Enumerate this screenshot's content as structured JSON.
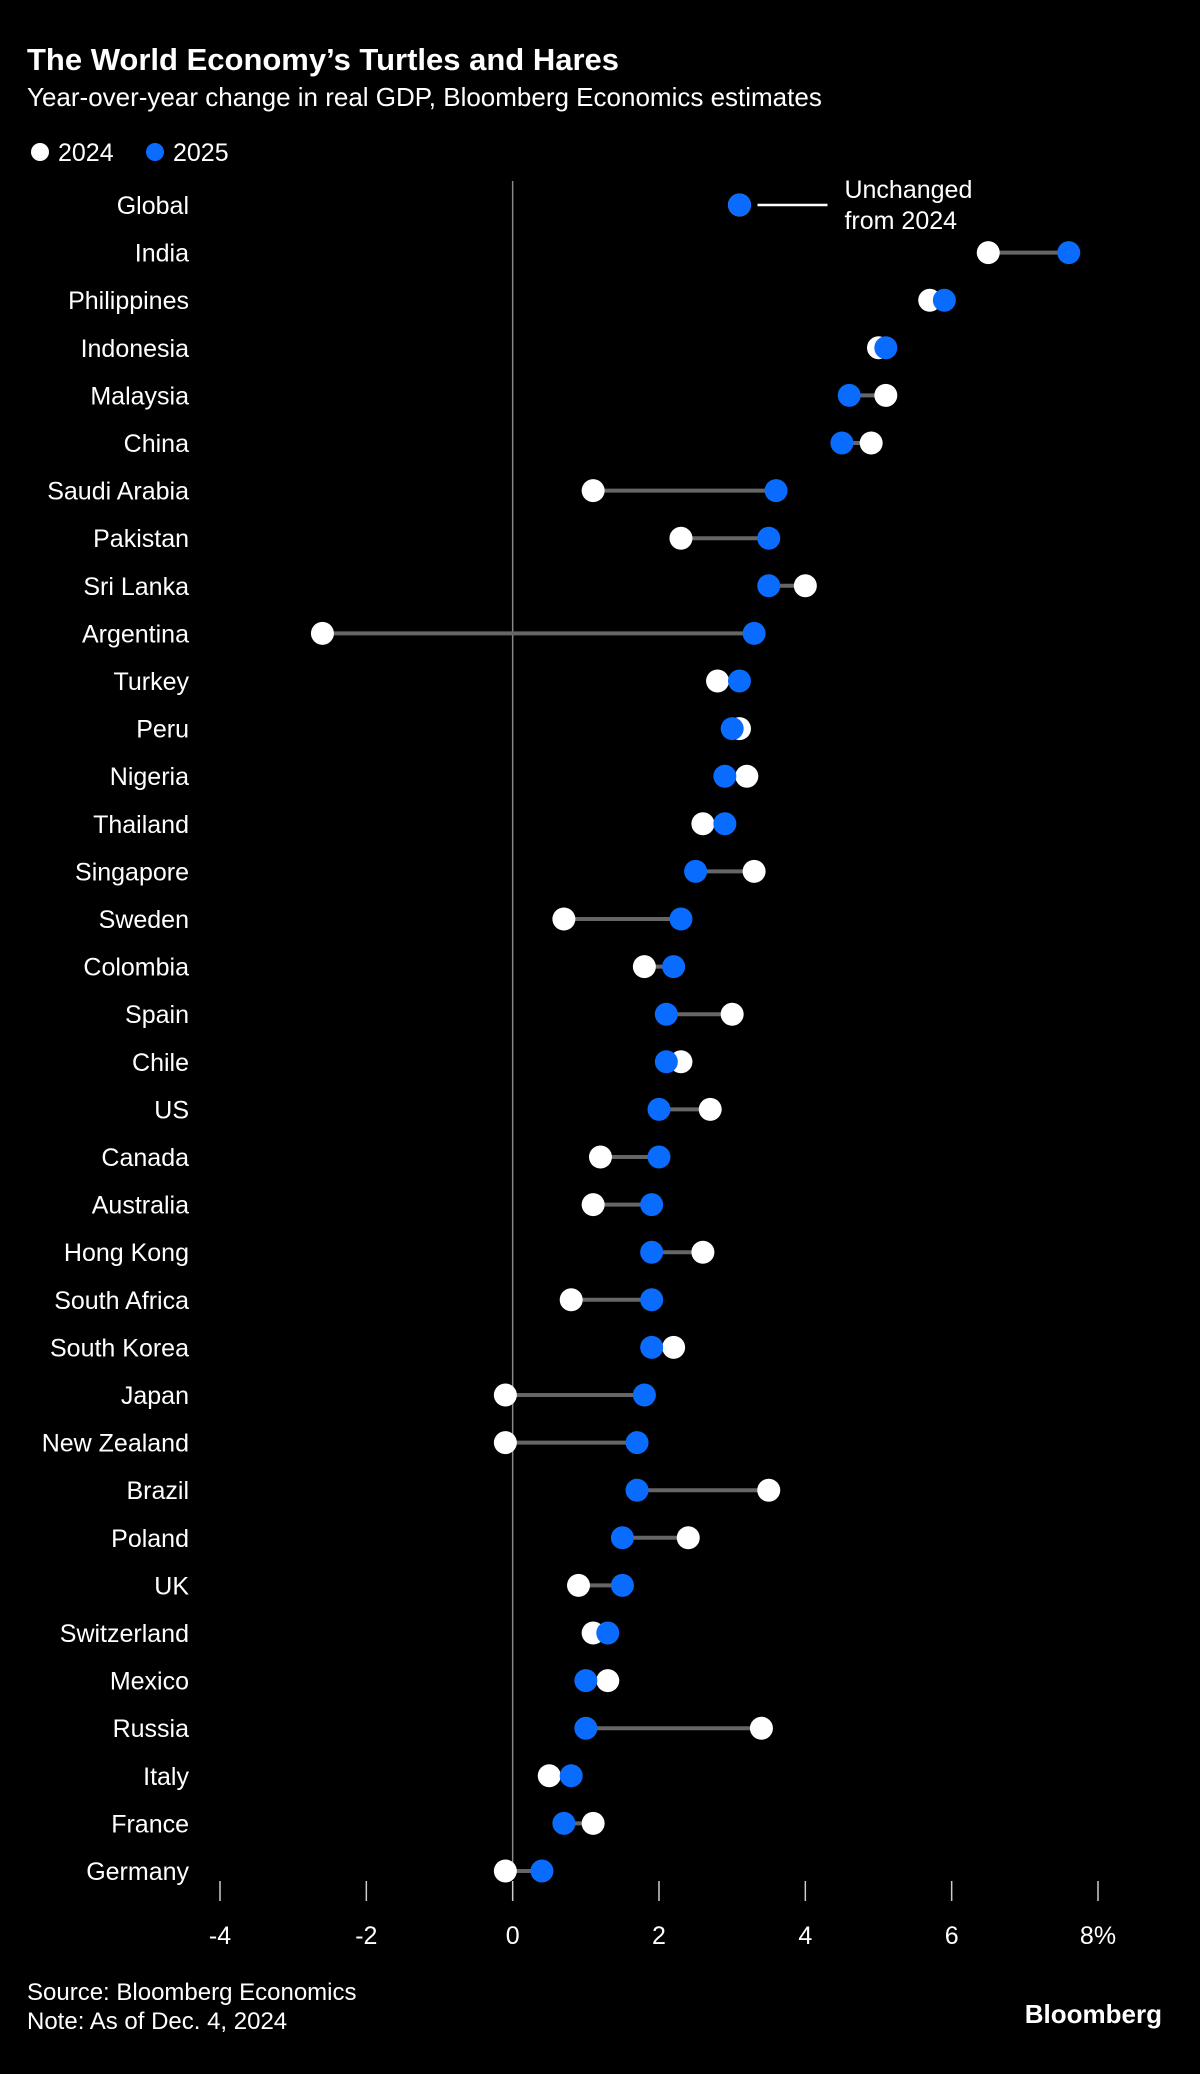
{
  "chart_data": {
    "type": "dumbbell",
    "title": "The World Economy’s Turtles and Hares",
    "subtitle": "Year-over-year change in real GDP, Bloomberg Economics estimates",
    "legend": {
      "placement": "top-left",
      "entries": [
        {
          "name": "2024",
          "color": "#ffffff"
        },
        {
          "name": "2025",
          "color": "#0a6cff"
        }
      ]
    },
    "xlim": [
      -4,
      8
    ],
    "x_ticks": [
      "-4",
      "-2",
      "0",
      "2",
      "4",
      "6",
      "8%"
    ],
    "x_tick_values": [
      -4,
      -2,
      0,
      2,
      4,
      6,
      8
    ],
    "reference_line": 0,
    "connector_color": "#666666",
    "annotation": {
      "target": "Global",
      "lines": [
        "Unchanged",
        "from 2024"
      ]
    },
    "categories": [
      "Global",
      "India",
      "Philippines",
      "Indonesia",
      "Malaysia",
      "China",
      "Saudi Arabia",
      "Pakistan",
      "Sri Lanka",
      "Argentina",
      "Turkey",
      "Peru",
      "Nigeria",
      "Thailand",
      "Singapore",
      "Sweden",
      "Colombia",
      "Spain",
      "Chile",
      "US",
      "Canada",
      "Australia",
      "Hong Kong",
      "South Africa",
      "South Korea",
      "Japan",
      "New Zealand",
      "Brazil",
      "Poland",
      "UK",
      "Switzerland",
      "Mexico",
      "Russia",
      "Italy",
      "France",
      "Germany"
    ],
    "series": [
      {
        "name": "2024",
        "values": [
          3.1,
          6.5,
          5.7,
          5.0,
          5.1,
          4.9,
          1.1,
          2.3,
          4.0,
          -2.6,
          2.8,
          3.1,
          3.2,
          2.6,
          3.3,
          0.7,
          1.8,
          3.0,
          2.3,
          2.7,
          1.2,
          1.1,
          2.6,
          0.8,
          2.2,
          -0.1,
          -0.1,
          3.5,
          2.4,
          0.9,
          1.1,
          1.3,
          3.4,
          0.5,
          1.1,
          -0.1
        ]
      },
      {
        "name": "2025",
        "values": [
          3.1,
          7.6,
          5.9,
          5.1,
          4.6,
          4.5,
          3.6,
          3.5,
          3.5,
          3.3,
          3.1,
          3.0,
          2.9,
          2.9,
          2.5,
          2.3,
          2.2,
          2.1,
          2.1,
          2.0,
          2.0,
          1.9,
          1.9,
          1.9,
          1.9,
          1.8,
          1.7,
          1.7,
          1.5,
          1.5,
          1.3,
          1.0,
          1.0,
          0.8,
          0.7,
          0.4
        ]
      }
    ]
  },
  "footer": {
    "source": "Source: Bloomberg Economics",
    "note": "Note: As of Dec. 4, 2024",
    "logo": "Bloomberg"
  }
}
